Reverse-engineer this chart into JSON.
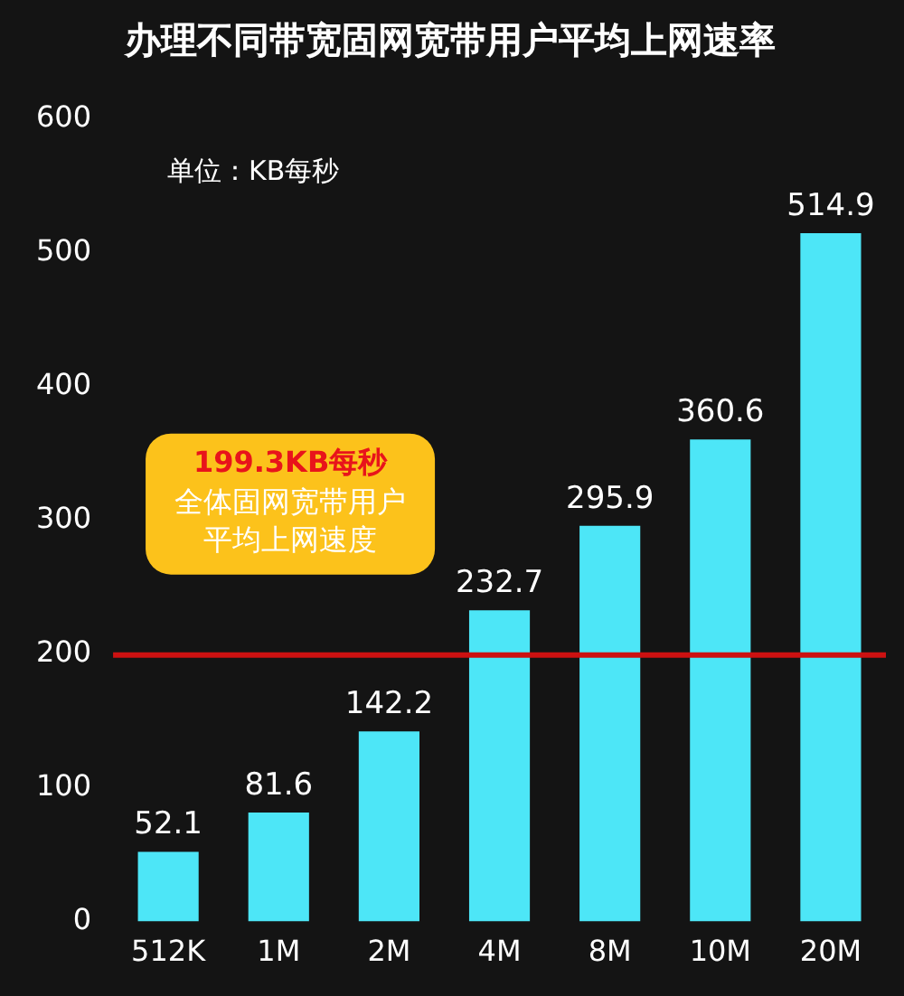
{
  "chart_data": {
    "type": "bar",
    "title": "办理不同带宽固网宽带用户平均上网速率",
    "subtitle": "单位：KB每秒",
    "categories": [
      "512K",
      "1M",
      "2M",
      "4M",
      "8M",
      "10M",
      "20M"
    ],
    "values": [
      52.1,
      81.6,
      142.2,
      232.7,
      295.9,
      360.6,
      514.9
    ],
    "color": "#4de6f7",
    "ylim": [
      0,
      600
    ],
    "yticks": [
      0,
      100,
      200,
      300,
      400,
      500,
      600
    ],
    "grid": false,
    "legend": false,
    "data_labels": true,
    "ref_lines": [
      {
        "axis": "y",
        "value": 199.3,
        "label": "199.3KB每秒",
        "color": "#cc1111"
      }
    ],
    "annotations": [
      "全体固网宽带用户平均上网速度"
    ]
  }
}
